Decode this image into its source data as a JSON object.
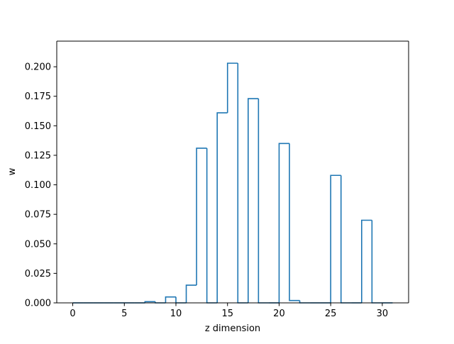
{
  "chart_data": {
    "type": "bar",
    "style": "step-histogram",
    "title": "",
    "xlabel": "z dimension",
    "ylabel": "w",
    "xlim": [
      -1.55,
      32.55
    ],
    "ylim": [
      0,
      0.2217
    ],
    "grid": false,
    "legend": "none",
    "color": "#1f77b4",
    "x_ticks": [
      0,
      5,
      10,
      15,
      20,
      25,
      30
    ],
    "x_tick_labels": [
      "0",
      "5",
      "10",
      "15",
      "20",
      "25",
      "30"
    ],
    "y_ticks": [
      0,
      0.025,
      0.05,
      0.075,
      0.1,
      0.125,
      0.15,
      0.175,
      0.2
    ],
    "y_tick_labels": [
      "0.000",
      "0.025",
      "0.050",
      "0.075",
      "0.100",
      "0.125",
      "0.150",
      "0.175",
      "0.200"
    ],
    "bin_start": 0,
    "bin_width": 1,
    "values": [
      0,
      0,
      0,
      0,
      0,
      0,
      0,
      0.001,
      0,
      0.005,
      0,
      0.015,
      0.131,
      0,
      0.161,
      0.203,
      0,
      0.173,
      0,
      0,
      0.135,
      0.002,
      0,
      0,
      0,
      0.108,
      0,
      0,
      0.07,
      0,
      0
    ]
  }
}
